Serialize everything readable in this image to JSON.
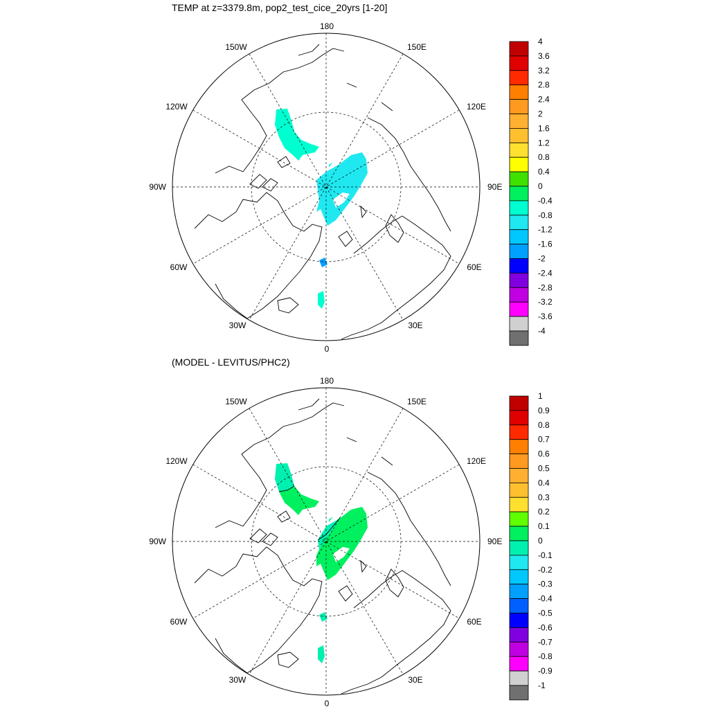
{
  "panels": [
    {
      "id": "top",
      "title": "TEMP at z=3379.8m, pop2_test_cice_20yrs [1-20]",
      "colorbar": {
        "labels": [
          "4",
          "3.6",
          "3.2",
          "2.8",
          "2.4",
          "2",
          "1.6",
          "1.2",
          "0.8",
          "0.4",
          "0",
          "-0.4",
          "-0.8",
          "-1.2",
          "-1.6",
          "-2",
          "-2.4",
          "-2.8",
          "-3.2",
          "-3.6",
          "-4"
        ],
        "colors": [
          "#c00000",
          "#e00000",
          "#ff2a00",
          "#ff8000",
          "#ff9a20",
          "#ffb030",
          "#ffc030",
          "#ffe030",
          "#ffff00",
          "#40e000",
          "#00f060",
          "#00ffd0",
          "#20e8f0",
          "#00c8ff",
          "#00a0ff",
          "#0000ff",
          "#8000e0",
          "#c000e0",
          "#ff00ff",
          "#d0d0d0",
          "#707070"
        ]
      }
    },
    {
      "id": "bottom",
      "title": "(MODEL - LEVITUS/PHC2)",
      "colorbar": {
        "labels": [
          "1",
          "0.9",
          "0.8",
          "0.7",
          "0.6",
          "0.5",
          "0.4",
          "0.3",
          "0.2",
          "0.1",
          "0",
          "-0.1",
          "-0.2",
          "-0.3",
          "-0.4",
          "-0.5",
          "-0.6",
          "-0.7",
          "-0.8",
          "-0.9",
          "-1"
        ],
        "colors": [
          "#c00000",
          "#e00000",
          "#ff2a00",
          "#ff8000",
          "#ff9a20",
          "#ffb030",
          "#ffc030",
          "#ffe030",
          "#60ff00",
          "#00f060",
          "#00f0b0",
          "#20e8f0",
          "#00c8ff",
          "#00a0ff",
          "#0060ff",
          "#0000ff",
          "#8000e0",
          "#c000e0",
          "#ff00ff",
          "#d0d0d0",
          "#707070"
        ]
      }
    }
  ],
  "map": {
    "lon_labels": {
      "top": "180",
      "bottom": "0",
      "left": "90W",
      "right": "90E",
      "upper_left_1": "150W",
      "upper_left_2": "120W",
      "lower_left_1": "60W",
      "lower_left_2": "30W",
      "upper_right_1": "150E",
      "upper_right_2": "120E",
      "lower_right_1": "60E",
      "lower_right_2": "30E"
    }
  },
  "fields": {
    "top": [
      {
        "region": "canada-basin",
        "value": -0.4
      },
      {
        "region": "eurasian-basin",
        "value": -0.8
      },
      {
        "region": "fram-strait",
        "value": -1.2
      },
      {
        "region": "greenland-sea",
        "value": -0.4
      }
    ],
    "bottom": [
      {
        "region": "canada-basin-north",
        "value": -0.1
      },
      {
        "region": "canada-basin-south",
        "value": 0.1
      },
      {
        "region": "eurasian-basin",
        "value": 0.1
      },
      {
        "region": "eurasian-basin-edge",
        "value": -0.1
      },
      {
        "region": "fram-strait",
        "value": -0.1
      },
      {
        "region": "greenland-sea",
        "value": -0.1
      }
    ]
  }
}
